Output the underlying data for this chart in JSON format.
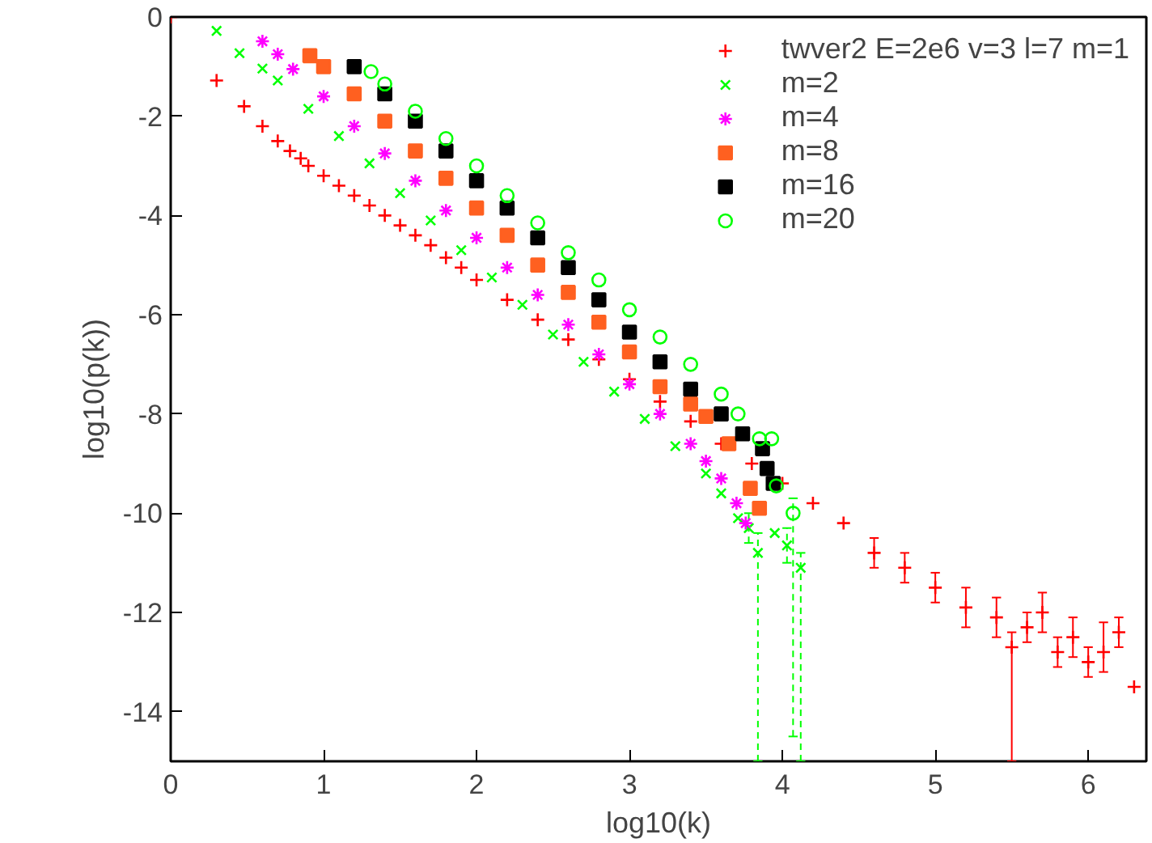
{
  "chart_data": {
    "type": "scatter",
    "xlabel": "log10(k)",
    "ylabel": "log10(p(k))",
    "xlim": [
      0,
      6.38
    ],
    "ylim": [
      -15,
      0
    ],
    "xticks": [
      0,
      1,
      2,
      3,
      4,
      5,
      6
    ],
    "yticks": [
      0,
      -2,
      -4,
      -6,
      -8,
      -10,
      -12,
      -14
    ],
    "grid": false,
    "legend": "top right",
    "series": [
      {
        "name": "twver2 E=2e6 v=3 l=7 m=1",
        "color": "#ff0000",
        "marker": "cross",
        "line_style": "solid",
        "x": [
          0,
          0.3,
          0.48,
          0.6,
          0.7,
          0.78,
          0.85,
          0.9,
          1.0,
          1.1,
          1.2,
          1.3,
          1.4,
          1.5,
          1.6,
          1.7,
          1.8,
          1.9,
          2.0,
          2.2,
          2.4,
          2.6,
          2.8,
          3.0,
          3.2,
          3.4,
          3.6,
          3.8,
          4.0,
          4.2,
          4.4,
          4.6,
          4.8,
          5.0,
          5.2,
          5.4,
          5.5,
          5.6,
          5.7,
          5.8,
          5.9,
          6.0,
          6.1,
          6.2,
          6.3
        ],
        "values": [
          0,
          -1.28,
          -1.8,
          -2.2,
          -2.5,
          -2.7,
          -2.85,
          -3.0,
          -3.2,
          -3.4,
          -3.6,
          -3.8,
          -4.0,
          -4.2,
          -4.4,
          -4.6,
          -4.85,
          -5.05,
          -5.3,
          -5.7,
          -6.1,
          -6.5,
          -6.9,
          -7.3,
          -7.75,
          -8.15,
          -8.6,
          -9.0,
          -9.4,
          -9.8,
          -10.2,
          -10.8,
          -11.1,
          -11.5,
          -11.9,
          -12.1,
          -12.7,
          -12.3,
          -12.0,
          -12.8,
          -12.5,
          -13.0,
          -12.8,
          -12.4,
          -13.5
        ],
        "errors": [
          null,
          null,
          null,
          null,
          null,
          null,
          null,
          null,
          null,
          null,
          null,
          null,
          null,
          null,
          null,
          null,
          null,
          null,
          null,
          null,
          null,
          null,
          null,
          null,
          null,
          null,
          null,
          null,
          null,
          null,
          null,
          [
            -11.1,
            -10.5
          ],
          [
            -11.4,
            -10.8
          ],
          [
            -11.8,
            -11.2
          ],
          [
            -12.3,
            -11.5
          ],
          [
            -12.5,
            -11.7
          ],
          [
            -15,
            -12.4
          ],
          [
            -12.6,
            -12.0
          ],
          [
            -12.4,
            -11.6
          ],
          [
            -13.1,
            -12.5
          ],
          [
            -12.9,
            -12.1
          ],
          [
            -13.3,
            -12.7
          ],
          [
            -13.2,
            -12.2
          ],
          [
            -12.7,
            -12.1
          ],
          null
        ]
      },
      {
        "name": "m=2",
        "color": "#00ff00",
        "marker": "x",
        "line_style": "dashed",
        "x": [
          0.3,
          0.45,
          0.6,
          0.7,
          0.9,
          1.1,
          1.3,
          1.5,
          1.7,
          1.9,
          2.1,
          2.3,
          2.5,
          2.7,
          2.9,
          3.1,
          3.3,
          3.5,
          3.6,
          3.71,
          3.78,
          3.84,
          3.95,
          4.03,
          4.12
        ],
        "values": [
          -0.28,
          -0.73,
          -1.04,
          -1.28,
          -1.85,
          -2.4,
          -2.95,
          -3.55,
          -4.1,
          -4.7,
          -5.25,
          -5.8,
          -6.4,
          -6.95,
          -7.55,
          -8.1,
          -8.65,
          -9.2,
          -9.6,
          -10.1,
          -10.3,
          -10.8,
          -10.4,
          -10.65,
          -11.1
        ],
        "errors": [
          null,
          null,
          null,
          null,
          null,
          null,
          null,
          null,
          null,
          null,
          null,
          null,
          null,
          null,
          null,
          null,
          null,
          null,
          null,
          null,
          [
            -10.6,
            -10.0
          ],
          [
            -15,
            -10.4
          ],
          null,
          [
            -11.0,
            -10.3
          ],
          [
            -15,
            -10.8
          ]
        ]
      },
      {
        "name": "m=4",
        "color": "#ff00ff",
        "line_style": "dotted",
        "x": [
          0.6,
          0.7,
          0.8,
          1.0,
          1.2,
          1.4,
          1.6,
          1.8,
          2.0,
          2.2,
          2.4,
          2.6,
          2.8,
          3.0,
          3.2,
          3.4,
          3.5,
          3.6,
          3.7,
          3.76
        ],
        "values": [
          -0.49,
          -0.75,
          -1.05,
          -1.6,
          -2.2,
          -2.75,
          -3.3,
          -3.9,
          -4.45,
          -5.05,
          -5.6,
          -6.2,
          -6.8,
          -7.4,
          -8.0,
          -8.6,
          -8.95,
          -9.3,
          -9.8,
          -10.2
        ]
      },
      {
        "name": "m=8",
        "color": "#ff6020",
        "marker": "square",
        "line_style": "dotted",
        "x": [
          0.91,
          1.0,
          1.2,
          1.4,
          1.6,
          1.8,
          2.0,
          2.2,
          2.4,
          2.6,
          2.8,
          3.0,
          3.2,
          3.4,
          3.5,
          3.65,
          3.79,
          3.85
        ],
        "values": [
          -0.78,
          -1.0,
          -1.55,
          -2.1,
          -2.7,
          -3.25,
          -3.85,
          -4.4,
          -5.0,
          -5.55,
          -6.15,
          -6.75,
          -7.45,
          -7.8,
          -8.05,
          -8.6,
          -9.5,
          -9.9
        ]
      },
      {
        "name": "m=16",
        "color": "#000000",
        "marker": "square",
        "line_style": "dotted",
        "x": [
          1.2,
          1.4,
          1.6,
          1.8,
          2.0,
          2.2,
          2.4,
          2.6,
          2.8,
          3.0,
          3.2,
          3.4,
          3.6,
          3.74,
          3.87,
          3.9,
          3.94
        ],
        "values": [
          -1.0,
          -1.55,
          -2.1,
          -2.7,
          -3.3,
          -3.85,
          -4.45,
          -5.05,
          -5.7,
          -6.35,
          -6.95,
          -7.5,
          -8.0,
          -8.4,
          -8.7,
          -9.1,
          -9.4
        ]
      },
      {
        "name": "m=20",
        "color": "#00ff00",
        "marker": "circle",
        "line_style": "dashed",
        "x": [
          1.31,
          1.4,
          1.6,
          1.8,
          2.0,
          2.2,
          2.4,
          2.6,
          2.8,
          3.0,
          3.2,
          3.4,
          3.6,
          3.71,
          3.85,
          3.93,
          3.96,
          4.07
        ],
        "values": [
          -1.1,
          -1.35,
          -1.9,
          -2.45,
          -3.0,
          -3.6,
          -4.15,
          -4.75,
          -5.3,
          -5.9,
          -6.45,
          -7.0,
          -7.6,
          -8.0,
          -8.5,
          -8.5,
          -9.45,
          -10.0
        ],
        "errors": [
          null,
          null,
          null,
          null,
          null,
          null,
          null,
          null,
          null,
          null,
          null,
          null,
          null,
          null,
          null,
          null,
          null,
          [
            -14.5,
            -9.7
          ]
        ]
      }
    ]
  }
}
